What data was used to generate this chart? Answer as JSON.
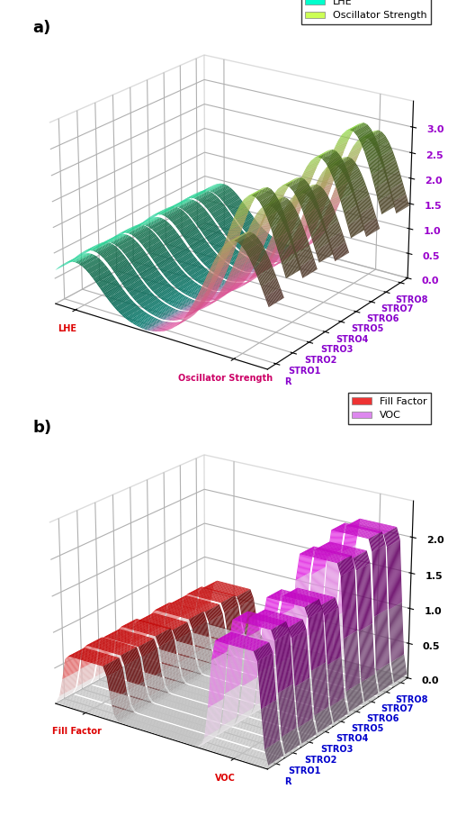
{
  "molecules": [
    "R",
    "STRO1",
    "STRO2",
    "STRO3",
    "STRO4",
    "STRO5",
    "STRO6",
    "STRO7",
    "STRO8"
  ],
  "lhe_values": [
    0.93,
    0.97,
    0.95,
    0.96,
    0.94,
    0.98,
    0.96,
    0.97,
    0.95
  ],
  "osc_values": [
    2.2,
    2.85,
    2.5,
    2.7,
    2.4,
    2.9,
    2.6,
    3.1,
    2.8
  ],
  "ff_values": [
    0.72,
    0.74,
    0.73,
    0.75,
    0.71,
    0.74,
    0.72,
    0.73,
    0.7
  ],
  "voc_values": [
    1.5,
    1.65,
    1.55,
    1.7,
    1.6,
    2.05,
    2.0,
    2.15,
    2.1
  ],
  "panel_a_title": "a)",
  "panel_b_title": "b)",
  "legend_a": [
    "LHE",
    "Oscillator Strength"
  ],
  "legend_b": [
    "Fill Factor",
    "VOC"
  ],
  "axis_a_osc_label": "Oscillator Strength",
  "axis_a_lhe_label": "LHE",
  "axis_b_voc_label": "VOC",
  "axis_b_ff_label": "Fill Factor",
  "zlim_a": [
    0,
    3.5
  ],
  "zlim_b": [
    0,
    2.5
  ],
  "zticks_a": [
    0.0,
    0.5,
    1.0,
    1.5,
    2.0,
    2.5,
    3.0
  ],
  "zticks_b": [
    0.0,
    0.5,
    1.0,
    1.5,
    2.0
  ],
  "label_color_a": "#8800cc",
  "label_color_b": "#0000cc",
  "zaxis_color_a": "#9900cc",
  "background_color": "#ffffff",
  "elev_a": 22,
  "azim_a": -55,
  "elev_b": 22,
  "azim_b": -55
}
